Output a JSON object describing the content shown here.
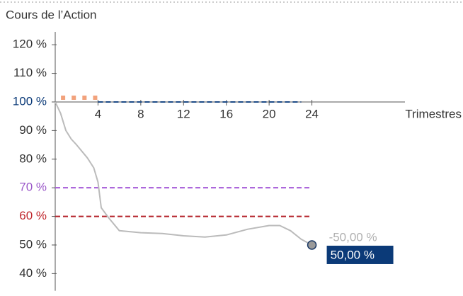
{
  "chart_data": {
    "type": "line",
    "title": "Cours de l’Action",
    "x_label": "Trimestres",
    "xlim": [
      0,
      32.7
    ],
    "ylim": [
      34,
      124.5
    ],
    "x_axis_at": 100,
    "xticks": [
      4,
      8,
      12,
      16,
      20,
      24
    ],
    "yticks": [
      {
        "value": 120,
        "label": "120 %",
        "color": "#333333"
      },
      {
        "value": 110,
        "label": "110 %",
        "color": "#333333"
      },
      {
        "value": 100,
        "label": "100 %",
        "color": "#0b3a78"
      },
      {
        "value": 90,
        "label": "90 %",
        "color": "#333333"
      },
      {
        "value": 80,
        "label": "80 %",
        "color": "#333333"
      },
      {
        "value": 70,
        "label": "70 %",
        "color": "#9b59c9"
      },
      {
        "value": 60,
        "label": "60 %",
        "color": "#c0272d"
      },
      {
        "value": 50,
        "label": "50 %",
        "color": "#333333"
      },
      {
        "value": 40,
        "label": "40 %",
        "color": "#333333"
      }
    ],
    "reference_lines": [
      {
        "x": [
          0,
          24
        ],
        "values": [
          70,
          70
        ],
        "color": "#a55ad8"
      },
      {
        "x": [
          0,
          24
        ],
        "values": [
          60,
          60
        ],
        "color": "#b5232b"
      },
      {
        "x": [
          4,
          23
        ],
        "values": [
          100,
          100
        ],
        "color": "#1c4a86"
      }
    ],
    "markers": {
      "x": [
        1,
        2,
        3,
        4
      ],
      "values": [
        100,
        100,
        100,
        100
      ],
      "color": "#f2a27c"
    },
    "series": [
      {
        "color": "#bbbbbb",
        "x": [
          0,
          0.5,
          1,
          1.5,
          2,
          3,
          3.6,
          4,
          4.3,
          5,
          6,
          8,
          10,
          12,
          14,
          16,
          18,
          20,
          21,
          22,
          23,
          24
        ],
        "values": [
          100,
          96,
          90,
          87,
          85,
          80.5,
          77,
          72,
          63,
          59.5,
          55,
          54.3,
          54,
          53.2,
          52.8,
          53.5,
          55.5,
          56.8,
          56.8,
          55,
          52,
          50
        ]
      }
    ],
    "end_label": {
      "value": 50,
      "label": "50,00 %"
    },
    "change_label": {
      "value": -50,
      "label": "-50,00 %"
    }
  }
}
